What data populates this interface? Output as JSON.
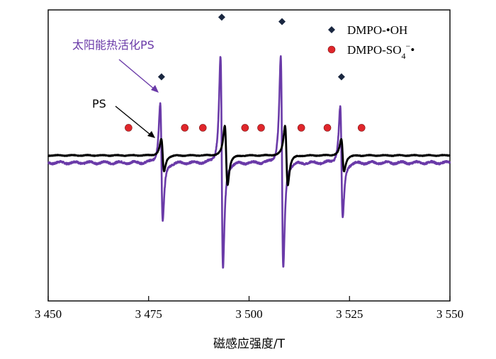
{
  "chart_data": {
    "type": "line",
    "xlabel": "磁感应强度/T",
    "ylabel": "",
    "xlim": [
      3450,
      3550
    ],
    "x_ticks": [
      3450,
      3475,
      3500,
      3525,
      3550
    ],
    "x_tick_labels": [
      "3 450",
      "3 475",
      "3 500",
      "3 525",
      "3 550"
    ],
    "ylim": [
      -1.0,
      1.0
    ],
    "grid": false,
    "legend_position": "top-right",
    "legend": [
      {
        "marker": "diamond",
        "color": "#1a2740",
        "label": "DMPO-•OH"
      },
      {
        "marker": "circle",
        "color": "#e0262b",
        "label": "DMPO-SO4−•"
      }
    ],
    "series": [
      {
        "name": "太阳能热活化PS",
        "color": "#6a3aa8",
        "baseline": -0.05,
        "lines": [
          {
            "x": 3478.2,
            "amplitude": 0.48,
            "halfwidth": 0.55
          },
          {
            "x": 3493.2,
            "amplitude": 0.86,
            "halfwidth": 0.55
          },
          {
            "x": 3508.2,
            "amplitude": 0.86,
            "halfwidth": 0.55
          },
          {
            "x": 3523.0,
            "amplitude": 0.45,
            "halfwidth": 0.55
          }
        ]
      },
      {
        "name": "PS",
        "color": "#000000",
        "baseline": 0.0,
        "lines": [
          {
            "x": 3478.5,
            "amplitude": 0.13,
            "halfwidth": 0.6
          },
          {
            "x": 3494.3,
            "amplitude": 0.24,
            "halfwidth": 0.6
          },
          {
            "x": 3509.3,
            "amplitude": 0.24,
            "halfwidth": 0.6
          },
          {
            "x": 3523.3,
            "amplitude": 0.13,
            "halfwidth": 0.6
          }
        ]
      }
    ],
    "markers_oh": {
      "x": [
        3478.2,
        3493.2,
        3508.2,
        3523.0
      ],
      "y": [
        0.54,
        0.95,
        0.92,
        0.54
      ]
    },
    "markers_so4": {
      "x": [
        3470.0,
        3484.0,
        3488.5,
        3499.0,
        3503.0,
        3513.0,
        3519.5,
        3528.0
      ],
      "y": [
        0.19,
        0.19,
        0.19,
        0.19,
        0.19,
        0.19,
        0.19,
        0.19
      ]
    },
    "annotations": [
      {
        "text": "太阳能热活化PS",
        "color": "#6a3aa8",
        "target_series": "太阳能热活化PS"
      },
      {
        "text": "PS",
        "color": "#000000",
        "target_series": "PS"
      }
    ]
  }
}
